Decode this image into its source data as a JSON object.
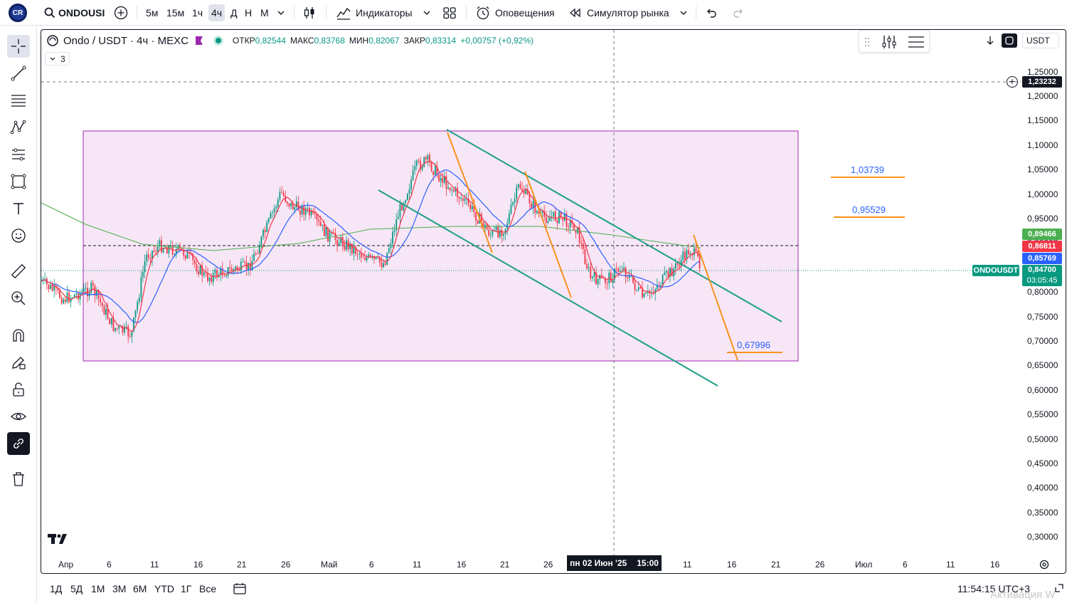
{
  "topbar": {
    "symbol": "ONDOUSI",
    "intervals": [
      "5м",
      "15м",
      "1ч",
      "4ч",
      "Д",
      "Н",
      "М"
    ],
    "indicators_label": "Индикаторы",
    "alerts_label": "Оповещения",
    "replay_label": "Симулятор рынка"
  },
  "legend": {
    "title": "Ondo / USDT · 4ч · MEXC",
    "open_label": "ОТКР",
    "open": "0,82544",
    "high_label": "МАКС",
    "high": "0,83768",
    "low_label": "МИН",
    "low": "0,82067",
    "close_label": "ЗАКР",
    "close": "0,83314",
    "change": "+0,00757 (+0,92%)",
    "indicator_count": "3"
  },
  "scale": {
    "currency": "USDT",
    "ticks": [
      "1,25000",
      "1,20000",
      "1,15000",
      "1,10000",
      "1,05000",
      "1,00000",
      "0,95000",
      "0,90000",
      "0,80000",
      "0,75000",
      "0,70000",
      "0,65000",
      "0,60000",
      "0,55000",
      "0,50000",
      "0,45000",
      "0,40000",
      "0,35000",
      "0,30000"
    ],
    "crosshair_price": "1,23232",
    "labels": {
      "green": "0,89466",
      "red": "0,86811",
      "blue": "0,85769",
      "last": "0,84700",
      "countdown": "03:05:45",
      "symbol_tag": "ONDOUSDT"
    }
  },
  "xaxis": {
    "ticks": [
      "Апр",
      "6",
      "11",
      "16",
      "21",
      "26",
      "Май",
      "6",
      "11",
      "16",
      "21",
      "26",
      "11",
      "16",
      "21",
      "26",
      "Июл",
      "6",
      "11",
      "16"
    ],
    "crosshair_time": "пн 02 Июн '25",
    "crosshair_clock": "15:00"
  },
  "annotations": {
    "level1": "1,03739",
    "level2": "0,95529",
    "level3": "0,67996"
  },
  "bottombar": {
    "ranges": [
      "1Д",
      "5Д",
      "1М",
      "3М",
      "6М",
      "YTD",
      "1Г",
      "Все"
    ],
    "clock": "11:54:15 UTC+3",
    "watermark": "Активация W"
  },
  "colors": {
    "up": "#089981",
    "down": "#f23645",
    "ma_red": "#f23645",
    "ma_blue": "#2962ff",
    "ma_green": "#4caf50",
    "channel": "#1e9e86",
    "fib": "#f7931a",
    "rect_fill": "#f7e6f6",
    "rect_border": "#9c27b0"
  }
}
